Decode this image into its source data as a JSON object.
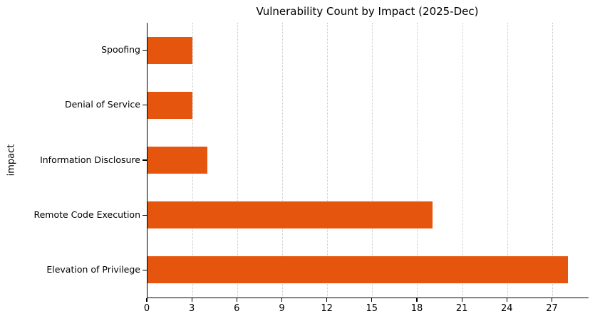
{
  "chart_data": {
    "type": "bar",
    "orientation": "horizontal",
    "title": "Vulnerability Count by Impact (2025-Dec)",
    "xlabel": "",
    "ylabel": "impact",
    "categories": [
      "Spoofing",
      "Denial of Service",
      "Information Disclosure",
      "Remote Code Execution",
      "Elevation of Privilege"
    ],
    "values": [
      3,
      3,
      4,
      19,
      28
    ],
    "x_ticks": [
      0,
      3,
      6,
      9,
      12,
      15,
      18,
      21,
      24,
      27
    ],
    "xlim": [
      0,
      29.4
    ],
    "bar_color": "#e6550d",
    "grid": "vertical-dotted",
    "grid_color": "#c9c9c9",
    "axis_color": "#000000",
    "legend": "none"
  }
}
